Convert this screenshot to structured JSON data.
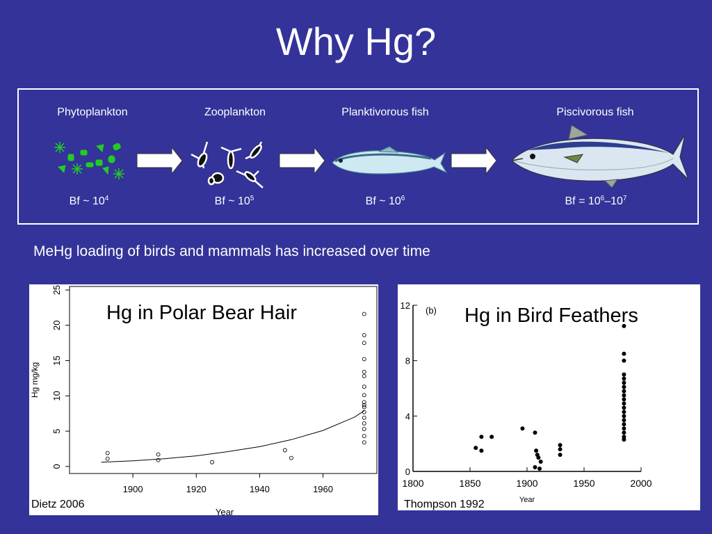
{
  "slide": {
    "title": "Why Hg?",
    "subtitle": "MeHg loading of birds and mammals has increased over time"
  },
  "food_chain": {
    "stages": [
      {
        "name": "Phytoplankton",
        "bf_prefix": "Bf ~ 10",
        "bf_exp": "4",
        "icon": "phytoplankton-icon"
      },
      {
        "name": "Zooplankton",
        "bf_prefix": "Bf ~ 10",
        "bf_exp": "5",
        "icon": "zooplankton-icon"
      },
      {
        "name": "Planktivorous fish",
        "bf_prefix": "Bf ~ 10",
        "bf_exp": "6",
        "icon": "small-fish-icon"
      },
      {
        "name": "Piscivorous fish",
        "bf_prefix": "Bf = 10",
        "bf_exp": "6",
        "bf_mid": "–10",
        "bf_exp2": "7",
        "icon": "tuna-icon"
      }
    ],
    "arrow_color": "#ffffff",
    "plankton_color": "#22cc22"
  },
  "chart_data": [
    {
      "type": "scatter",
      "title": "Hg in Polar Bear Hair",
      "xlabel": "Year",
      "ylabel": "Hg mg/kg",
      "xlim": [
        1880,
        1977
      ],
      "ylim": [
        -1,
        25.5
      ],
      "x_ticks": [
        1900,
        1920,
        1940,
        1960
      ],
      "y_ticks": [
        0,
        5,
        10,
        15,
        20,
        25
      ],
      "grid": false,
      "marker": "open-circle",
      "points": [
        {
          "x": 1892,
          "y": 1.9
        },
        {
          "x": 1892,
          "y": 1.1
        },
        {
          "x": 1908,
          "y": 1.7
        },
        {
          "x": 1908,
          "y": 0.9
        },
        {
          "x": 1925,
          "y": 0.6
        },
        {
          "x": 1948,
          "y": 2.3
        },
        {
          "x": 1950,
          "y": 1.2
        },
        {
          "x": 1973,
          "y": 21.6
        },
        {
          "x": 1973,
          "y": 18.6
        },
        {
          "x": 1973,
          "y": 17.5
        },
        {
          "x": 1973,
          "y": 15.2
        },
        {
          "x": 1973,
          "y": 13.4
        },
        {
          "x": 1973,
          "y": 12.8
        },
        {
          "x": 1973,
          "y": 11.3
        },
        {
          "x": 1973,
          "y": 10.1
        },
        {
          "x": 1973,
          "y": 9.1
        },
        {
          "x": 1973,
          "y": 8.7
        },
        {
          "x": 1973,
          "y": 8.4
        },
        {
          "x": 1973,
          "y": 7.7
        },
        {
          "x": 1973,
          "y": 6.9
        },
        {
          "x": 1973,
          "y": 6.1
        },
        {
          "x": 1973,
          "y": 5.3
        },
        {
          "x": 1973,
          "y": 4.3
        },
        {
          "x": 1973,
          "y": 3.4
        }
      ],
      "trend": [
        {
          "x": 1890,
          "y": 0.6
        },
        {
          "x": 1900,
          "y": 0.8
        },
        {
          "x": 1910,
          "y": 1.1
        },
        {
          "x": 1920,
          "y": 1.5
        },
        {
          "x": 1930,
          "y": 2.1
        },
        {
          "x": 1940,
          "y": 2.8
        },
        {
          "x": 1950,
          "y": 3.8
        },
        {
          "x": 1960,
          "y": 5.1
        },
        {
          "x": 1970,
          "y": 7.0
        },
        {
          "x": 1973,
          "y": 7.9
        }
      ],
      "citation": "Dietz 2006"
    },
    {
      "type": "scatter",
      "title": "Hg in Bird Feathers",
      "panel_label": "(b)",
      "xlabel": "Year",
      "xlim": [
        1800,
        2000
      ],
      "ylim": [
        0,
        12
      ],
      "x_ticks": [
        1800,
        1850,
        1900,
        1950,
        2000
      ],
      "y_ticks": [
        0,
        4,
        8,
        12
      ],
      "grid": false,
      "marker": "filled-circle",
      "points": [
        {
          "x": 1855,
          "y": 1.7
        },
        {
          "x": 1860,
          "y": 1.5
        },
        {
          "x": 1860,
          "y": 2.5
        },
        {
          "x": 1869,
          "y": 2.5
        },
        {
          "x": 1896,
          "y": 3.1
        },
        {
          "x": 1907,
          "y": 2.8
        },
        {
          "x": 1908,
          "y": 1.5
        },
        {
          "x": 1909,
          "y": 1.2
        },
        {
          "x": 1910,
          "y": 1.0
        },
        {
          "x": 1912,
          "y": 0.7
        },
        {
          "x": 1907,
          "y": 0.3
        },
        {
          "x": 1911,
          "y": 0.2
        },
        {
          "x": 1929,
          "y": 1.9
        },
        {
          "x": 1929,
          "y": 1.6
        },
        {
          "x": 1929,
          "y": 1.2
        },
        {
          "x": 1985,
          "y": 10.5
        },
        {
          "x": 1985,
          "y": 8.5
        },
        {
          "x": 1985,
          "y": 8.0
        },
        {
          "x": 1985,
          "y": 7.0
        },
        {
          "x": 1985,
          "y": 6.7
        },
        {
          "x": 1985,
          "y": 6.4
        },
        {
          "x": 1985,
          "y": 6.1
        },
        {
          "x": 1985,
          "y": 5.8
        },
        {
          "x": 1985,
          "y": 5.5
        },
        {
          "x": 1985,
          "y": 5.2
        },
        {
          "x": 1985,
          "y": 4.9
        },
        {
          "x": 1985,
          "y": 4.6
        },
        {
          "x": 1985,
          "y": 4.3
        },
        {
          "x": 1985,
          "y": 4.0
        },
        {
          "x": 1985,
          "y": 3.7
        },
        {
          "x": 1985,
          "y": 3.4
        },
        {
          "x": 1985,
          "y": 3.1
        },
        {
          "x": 1985,
          "y": 2.8
        },
        {
          "x": 1985,
          "y": 2.5
        },
        {
          "x": 1985,
          "y": 2.3
        }
      ],
      "citation": "Thompson 1992"
    }
  ]
}
